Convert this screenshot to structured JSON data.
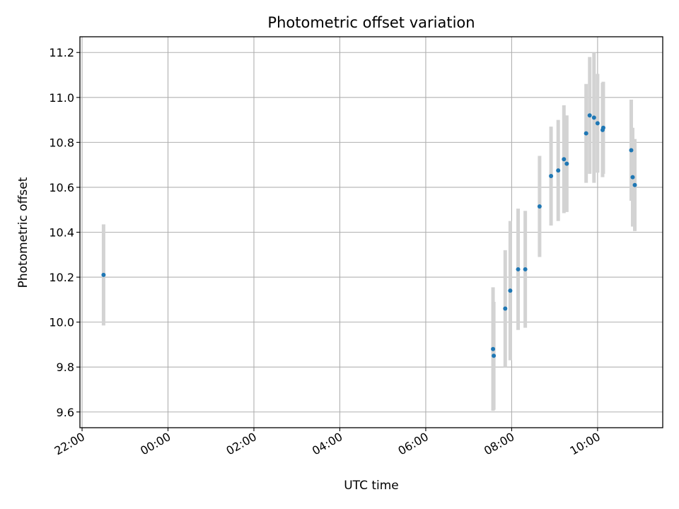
{
  "chart_data": {
    "type": "scatter",
    "title": "Photometric offset variation",
    "xlabel": "UTC time",
    "ylabel": "Photometric offset",
    "xlim": [
      "21:57",
      "11:31"
    ],
    "ylim": [
      9.53,
      11.27
    ],
    "x_ticks": [
      "22:00",
      "00:00",
      "02:00",
      "04:00",
      "06:00",
      "08:00",
      "10:00"
    ],
    "y_ticks": [
      9.6,
      9.8,
      10.0,
      10.2,
      10.4,
      10.6,
      10.8,
      11.0,
      11.2
    ],
    "grid": true,
    "marker_color": "#1f77b4",
    "errorbar_color": "#d3d3d3",
    "points": [
      {
        "t": "22:30",
        "y": 10.21,
        "err": 0.225
      },
      {
        "t": "07:34",
        "y": 9.88,
        "err": 0.275
      },
      {
        "t": "07:35",
        "y": 9.85,
        "err": 0.24
      },
      {
        "t": "07:51",
        "y": 10.06,
        "err": 0.26
      },
      {
        "t": "07:58",
        "y": 10.14,
        "err": 0.31
      },
      {
        "t": "08:09",
        "y": 10.235,
        "err": 0.27
      },
      {
        "t": "08:19",
        "y": 10.235,
        "err": 0.26
      },
      {
        "t": "08:39",
        "y": 10.515,
        "err": 0.225
      },
      {
        "t": "08:55",
        "y": 10.65,
        "err": 0.22
      },
      {
        "t": "09:05",
        "y": 10.675,
        "err": 0.225
      },
      {
        "t": "09:13",
        "y": 10.725,
        "err": 0.24
      },
      {
        "t": "09:17",
        "y": 10.705,
        "err": 0.215
      },
      {
        "t": "09:44",
        "y": 10.84,
        "err": 0.22
      },
      {
        "t": "09:49",
        "y": 10.92,
        "err": 0.26
      },
      {
        "t": "09:55",
        "y": 10.91,
        "err": 0.29
      },
      {
        "t": "10:00",
        "y": 10.885,
        "err": 0.22
      },
      {
        "t": "10:07",
        "y": 10.855,
        "err": 0.21
      },
      {
        "t": "10:08",
        "y": 10.865,
        "err": 0.205
      },
      {
        "t": "10:47",
        "y": 10.765,
        "err": 0.225
      },
      {
        "t": "10:49",
        "y": 10.645,
        "err": 0.22
      },
      {
        "t": "10:52",
        "y": 10.61,
        "err": 0.205
      }
    ]
  }
}
